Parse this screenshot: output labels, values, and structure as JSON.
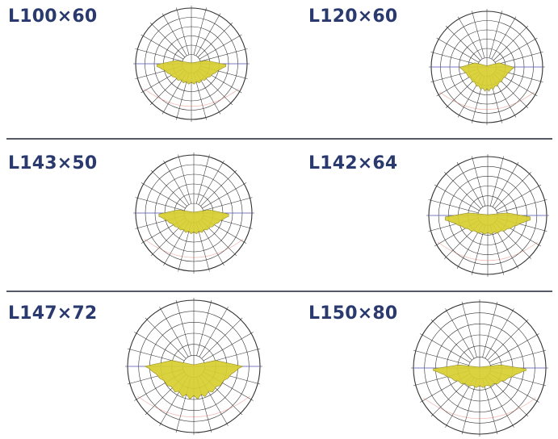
{
  "colors": {
    "label": "#2b3a6e",
    "divider": "#555a66",
    "grid": "#333333",
    "axis_blue": "#6b6fd6",
    "curve_red": "#e05a4a",
    "fill_yellow": "#d8cf30"
  },
  "items": [
    {
      "label": "L100×60"
    },
    {
      "label": "L120×60"
    },
    {
      "label": "L143×50"
    },
    {
      "label": "L142×64"
    },
    {
      "label": "L147×72"
    },
    {
      "label": "L150×80"
    }
  ]
}
